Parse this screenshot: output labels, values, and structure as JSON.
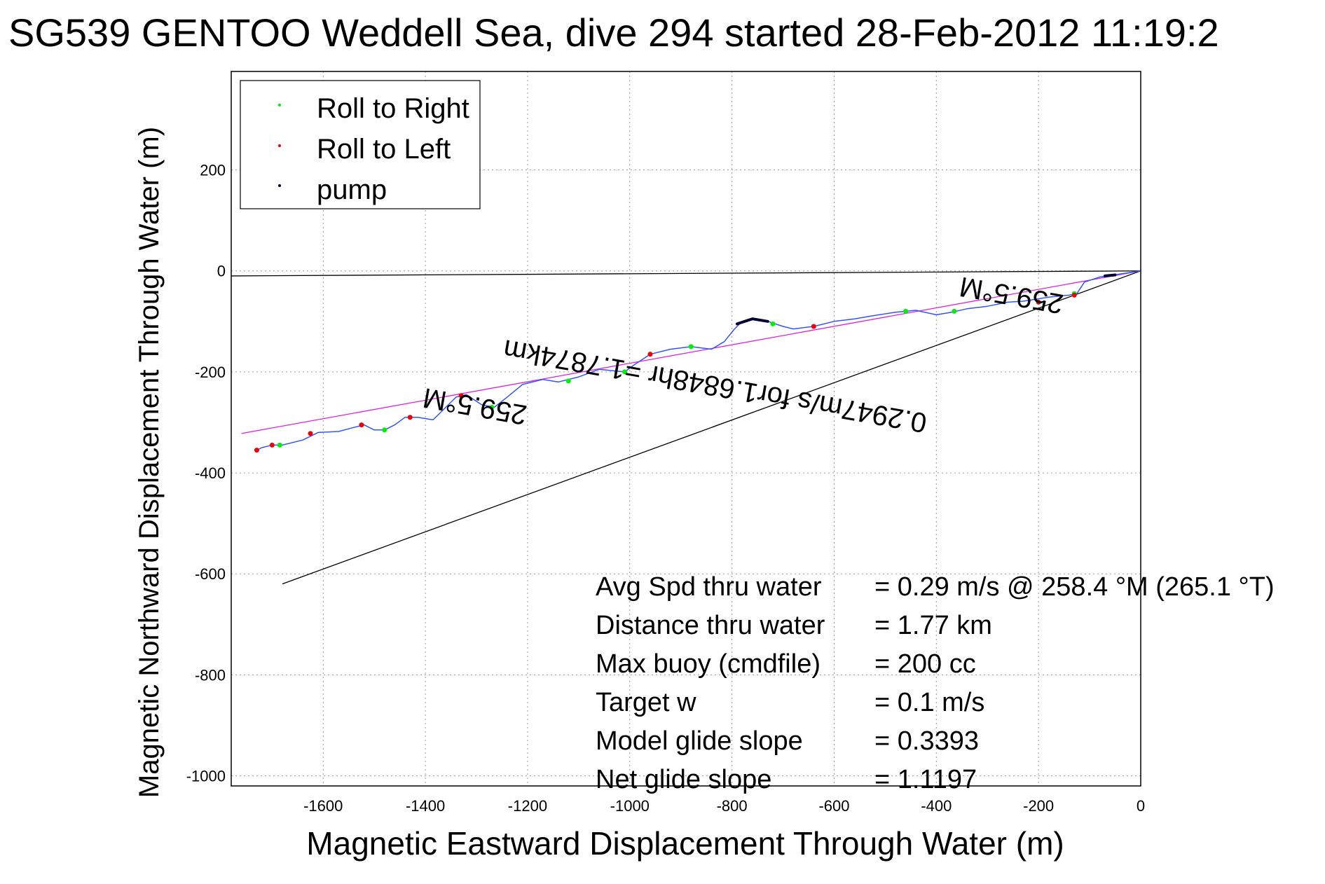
{
  "chart_data": {
    "type": "line",
    "title": "SG539 GENTOO Weddell Sea, dive 294 started 28-Feb-2012 11:19:2",
    "xlabel": "Magnetic Eastward Displacement Through Water (m)",
    "ylabel": "Magnetic Northward Displacement Through Water (m)",
    "xlim": [
      -1780,
      0
    ],
    "ylim": [
      -1020,
      395
    ],
    "xticks": [
      -1600,
      -1400,
      -1200,
      -1000,
      -800,
      -600,
      -400,
      -200,
      0
    ],
    "yticks": [
      200,
      0,
      -200,
      -400,
      -600,
      -800,
      -1000
    ],
    "grid": true,
    "legend": {
      "placement": "top-left",
      "entries": [
        {
          "label": "Roll to Right",
          "color": "#00ee00"
        },
        {
          "label": "Roll to Left",
          "color": "#ee0000"
        },
        {
          "label": "pump",
          "color": "#000033"
        }
      ]
    },
    "track": {
      "color": "#3355ff",
      "points": [
        [
          0,
          0
        ],
        [
          -40,
          -6
        ],
        [
          -80,
          -12
        ],
        [
          -110,
          -22
        ],
        [
          -125,
          -45
        ],
        [
          -140,
          -48
        ],
        [
          -180,
          -52
        ],
        [
          -230,
          -60
        ],
        [
          -260,
          -62
        ],
        [
          -300,
          -70
        ],
        [
          -340,
          -75
        ],
        [
          -370,
          -82
        ],
        [
          -400,
          -87
        ],
        [
          -440,
          -78
        ],
        [
          -480,
          -82
        ],
        [
          -520,
          -88
        ],
        [
          -560,
          -95
        ],
        [
          -600,
          -100
        ],
        [
          -640,
          -110
        ],
        [
          -680,
          -115
        ],
        [
          -700,
          -110
        ],
        [
          -730,
          -100
        ],
        [
          -760,
          -95
        ],
        [
          -780,
          -100
        ],
        [
          -795,
          -115
        ],
        [
          -815,
          -140
        ],
        [
          -840,
          -155
        ],
        [
          -880,
          -150
        ],
        [
          -920,
          -155
        ],
        [
          -960,
          -165
        ],
        [
          -990,
          -185
        ],
        [
          -1010,
          -200
        ],
        [
          -1060,
          -195
        ],
        [
          -1100,
          -210
        ],
        [
          -1140,
          -220
        ],
        [
          -1170,
          -215
        ],
        [
          -1210,
          -225
        ],
        [
          -1240,
          -250
        ],
        [
          -1265,
          -270
        ],
        [
          -1290,
          -265
        ],
        [
          -1320,
          -245
        ],
        [
          -1340,
          -250
        ],
        [
          -1360,
          -270
        ],
        [
          -1385,
          -295
        ],
        [
          -1415,
          -290
        ],
        [
          -1440,
          -290
        ],
        [
          -1460,
          -305
        ],
        [
          -1480,
          -315
        ],
        [
          -1500,
          -315
        ],
        [
          -1520,
          -305
        ],
        [
          -1540,
          -310
        ],
        [
          -1570,
          -318
        ],
        [
          -1610,
          -320
        ],
        [
          -1640,
          -335
        ],
        [
          -1680,
          -345
        ],
        [
          -1700,
          -345
        ],
        [
          -1720,
          -350
        ],
        [
          -1730,
          -355
        ]
      ]
    },
    "roll_right_markers": [
      [
        -130,
        -45
      ],
      [
        -365,
        -80
      ],
      [
        -460,
        -80
      ],
      [
        -720,
        -105
      ],
      [
        -880,
        -150
      ],
      [
        -1010,
        -200
      ],
      [
        -1120,
        -218
      ],
      [
        -1270,
        -270
      ],
      [
        -1480,
        -315
      ],
      [
        -1685,
        -345
      ]
    ],
    "roll_left_markers": [
      [
        -200,
        -62
      ],
      [
        -130,
        -48
      ],
      [
        -640,
        -110
      ],
      [
        -960,
        -165
      ],
      [
        -1330,
        -247
      ],
      [
        -1430,
        -290
      ],
      [
        -1525,
        -305
      ],
      [
        -1625,
        -322
      ],
      [
        -1700,
        -345
      ],
      [
        -1730,
        -355
      ]
    ],
    "pump_segments": [
      [
        [
          -730,
          -100
        ],
        [
          -760,
          -95
        ],
        [
          -790,
          -105
        ]
      ],
      [
        [
          -50,
          -8
        ],
        [
          -70,
          -10
        ]
      ]
    ],
    "heading_line": {
      "color": "#dd22dd",
      "from": [
        0,
        0
      ],
      "to": [
        -1760,
        -322
      ]
    },
    "reference_lines": [
      {
        "color": "#000000",
        "from": [
          0,
          0
        ],
        "to": [
          -1680,
          -620
        ]
      },
      {
        "color": "#000000",
        "from": [
          0,
          0
        ],
        "to": [
          -1780,
          -10
        ]
      }
    ],
    "annotations": [
      {
        "text": "259.5°M",
        "at": [
          -1300,
          -250
        ],
        "rotation": 190
      },
      {
        "text": "0.2947m/s for1.6848hr =1.7874km",
        "at": [
          -830,
          -210
        ],
        "rotation": 190
      },
      {
        "text": "259.5°M",
        "at": [
          -250,
          -30
        ],
        "rotation": 190
      }
    ],
    "stats": [
      {
        "label": "Avg Spd thru water",
        "value": "=  0.29 m/s @ 258.4 °M (265.1 °T)"
      },
      {
        "label": "Distance thru water",
        "value": "=  1.77 km"
      },
      {
        "label": "Max buoy (cmdfile)",
        "value": "= 200 cc"
      },
      {
        "label": "Target w",
        "value": "= 0.1 m/s"
      },
      {
        "label": "Model glide slope",
        "value": "= 0.3393"
      },
      {
        "label": "Net glide slope",
        "value": "= 1.1197"
      }
    ]
  }
}
